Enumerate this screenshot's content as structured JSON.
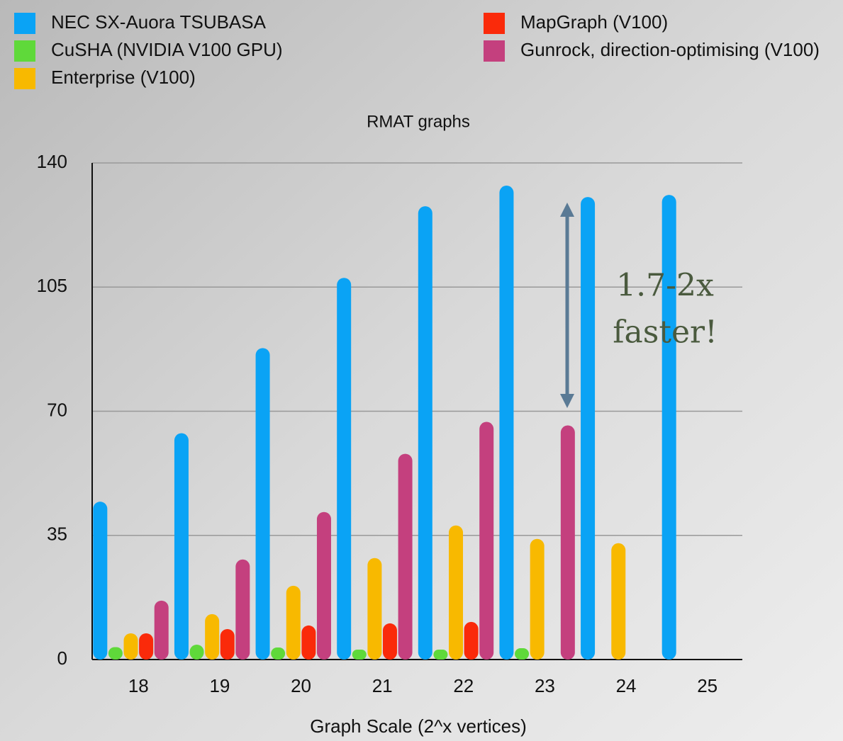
{
  "chart_data": {
    "type": "bar",
    "title": "RMAT graphs",
    "x_label": "Graph Scale (2^x vertices)",
    "categories": [
      "18",
      "19",
      "20",
      "21",
      "22",
      "23",
      "24",
      "25"
    ],
    "series": [
      {
        "name": "NEC SX-Auora TSUBASA",
        "color": "#0aa3f5",
        "values": [
          44.5,
          63.8,
          87.8,
          107.6,
          127.8,
          133.6,
          130.4,
          131
        ]
      },
      {
        "name": "CuSHA (NVIDIA V100 GPU)",
        "color": "#5fd93a",
        "values": [
          3.5,
          4.2,
          3.4,
          2.8,
          2.8,
          3.2,
          null,
          null
        ]
      },
      {
        "name": "Enterprise (V100)",
        "color": "#f8b900",
        "values": [
          7.4,
          12.8,
          20.8,
          28.6,
          37.8,
          34,
          32.8,
          null
        ]
      },
      {
        "name": "MapGraph (V100)",
        "color": "#fa2a0a",
        "values": [
          7.4,
          8.6,
          9.6,
          10.2,
          10.6,
          null,
          null,
          null
        ]
      },
      {
        "name": "Gunrock, direction-optimising (V100)",
        "color": "#c4407e",
        "values": [
          16.6,
          28.2,
          41.6,
          58,
          67,
          66,
          null,
          null
        ]
      }
    ],
    "ylim": [
      0,
      140
    ],
    "yticks": [
      0,
      35,
      70,
      105,
      140
    ],
    "grid": true,
    "legend": "top",
    "annotations": [
      "1.7-2x",
      "faster!"
    ]
  }
}
